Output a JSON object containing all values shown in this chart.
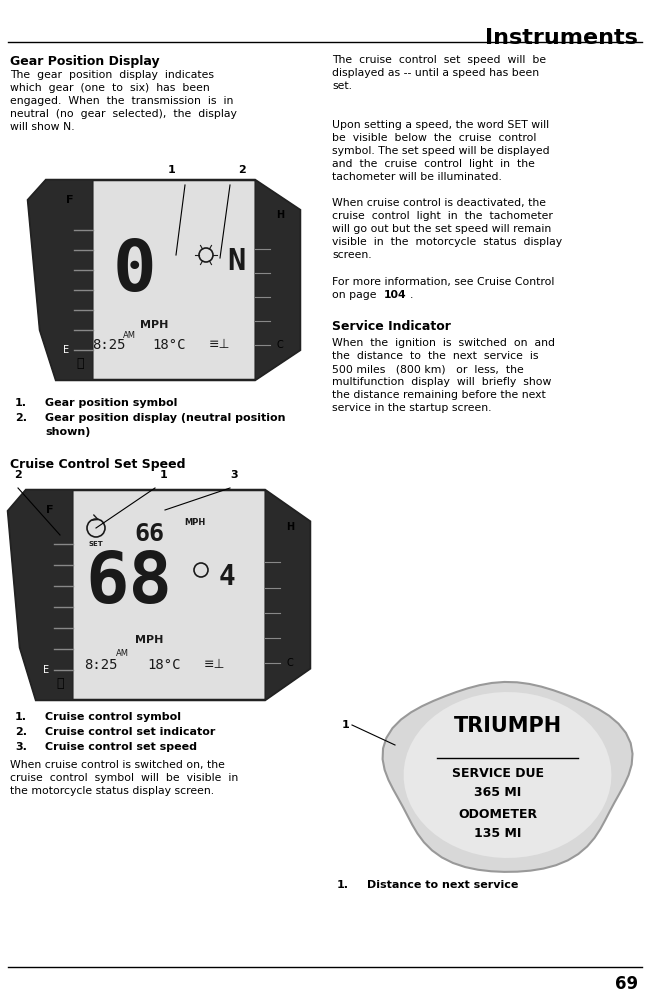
{
  "title": "Instruments",
  "page_number": "69",
  "bg_color": "#ffffff",
  "section1_heading": "Gear Position Display",
  "section1_body": "The  gear  position  display  indicates\nwhich  gear  (one  to  six)  has  been\nengaged.  When  the  transmission  is  in\nneutral  (no  gear  selected),  the  display\nwill show N.",
  "section1_labels": [
    {
      "num": "1.",
      "text": "Gear position symbol"
    },
    {
      "num": "2.",
      "text": "Gear position display (neutral position\n       shown)"
    }
  ],
  "section2_heading": "Cruise Control Set Speed",
  "section2_labels": [
    {
      "num": "1.",
      "text": "Cruise control symbol"
    },
    {
      "num": "2.",
      "text": "Cruise control set indicator"
    },
    {
      "num": "3.",
      "text": "Cruise control set speed"
    }
  ],
  "section2_body": "When cruise control is switched on, the\ncruise  control  symbol  will  be  visible  in\nthe motorcycle status display screen.",
  "right_text1": "The  cruise  control  set  speed  will  be\ndisplayed as -- until a speed has been\nset.",
  "right_text2": "Upon setting a speed, the word SET will\nbe  visible  below  the  cruise  control\nsymbol. The set speed will be displayed\nand  the  cruise  control  light  in  the\ntachometer will be illuminated.",
  "right_text3": "When cruise control is deactivated, the\ncruise  control  light  in  the  tachometer\nwill go out but the set speed will remain\nvisible  in  the  motorcycle  status  display\nscreen.",
  "right_text4a": "For more information, see Cruise Control\non page ",
  "right_text4b": "104",
  "right_text4c": ".",
  "service_heading": "Service Indicator",
  "service_body": "When  the  ignition  is  switched  on  and\nthe  distance  to  the  next  service  is\n500 miles   (800 km)   or  less,  the\nmultifunction  display  will  briefly  show\nthe distance remaining before the next\nservice in the startup screen.",
  "service_label_num": "1.",
  "service_label_text": "Distance to next service",
  "triumph_text": "TRIUMPH",
  "svc_line1": "SERVICE DUE",
  "svc_line2": "365 MI",
  "svc_line3": "ODOMETER",
  "svc_line4": "135 MI",
  "fs_title": 16,
  "fs_heading": 9,
  "fs_body": 7.8,
  "fs_label_bold": 8,
  "fs_page": 12
}
